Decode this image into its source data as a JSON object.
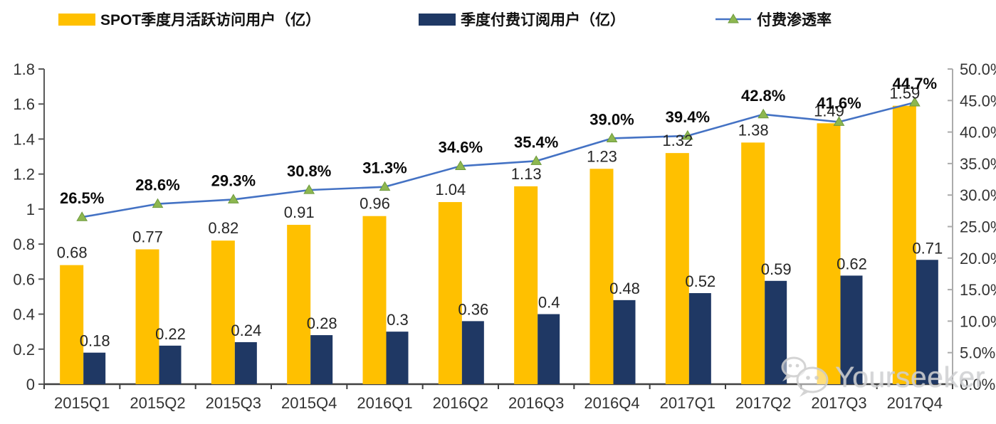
{
  "chart_data": {
    "type": "bar",
    "title": "",
    "categories": [
      "2015Q1",
      "2015Q2",
      "2015Q3",
      "2015Q4",
      "2016Q1",
      "2016Q2",
      "2016Q3",
      "2016Q4",
      "2017Q1",
      "2017Q2",
      "2017Q3",
      "2017Q4"
    ],
    "series": [
      {
        "name": "SPOT季度月活跃访问用户（亿）",
        "kind": "bar",
        "axis": "left",
        "color": "#FFC000",
        "values": [
          0.68,
          0.77,
          0.82,
          0.91,
          0.96,
          1.04,
          1.13,
          1.23,
          1.32,
          1.38,
          1.49,
          1.59
        ],
        "labels": [
          "0.68",
          "0.77",
          "0.82",
          "0.91",
          "0.96",
          "1.04",
          "1.13",
          "1.23",
          "1.32",
          "1.38",
          "1.49",
          "1.59"
        ]
      },
      {
        "name": "季度付费订阅用户（亿）",
        "kind": "bar",
        "axis": "left",
        "color": "#1F3864",
        "values": [
          0.18,
          0.22,
          0.24,
          0.28,
          0.3,
          0.36,
          0.4,
          0.48,
          0.52,
          0.59,
          0.62,
          0.71
        ],
        "labels": [
          "0.18",
          "0.22",
          "0.24",
          "0.28",
          "0.3",
          "0.36",
          "0.4",
          "0.48",
          "0.52",
          "0.59",
          "0.62",
          "0.71"
        ]
      },
      {
        "name": "付费渗透率",
        "kind": "line",
        "axis": "right",
        "color": "#4472C4",
        "marker": "triangle-up",
        "marker_color": "#8DB750",
        "marker_stroke": "#6E9A3D",
        "values": [
          26.5,
          28.6,
          29.3,
          30.8,
          31.3,
          34.6,
          35.4,
          39.0,
          39.4,
          42.8,
          41.6,
          44.7
        ],
        "labels": [
          "26.5%",
          "28.6%",
          "29.3%",
          "30.8%",
          "31.3%",
          "34.6%",
          "35.4%",
          "39.0%",
          "39.4%",
          "42.8%",
          "41.6%",
          "44.7%"
        ]
      }
    ],
    "left_axis": {
      "min": 0,
      "max": 1.8,
      "tick_labels": [
        "0",
        "0.2",
        "0.4",
        "0.6",
        "0.8",
        "1",
        "1.2",
        "1.4",
        "1.6",
        "1.8"
      ]
    },
    "right_axis": {
      "min": 0,
      "max": 50,
      "tick_labels": [
        "0.0%",
        "5.0%",
        "10.0%",
        "15.0%",
        "20.0%",
        "25.0%",
        "30.0%",
        "35.0%",
        "40.0%",
        "45.0%",
        "50.0%"
      ]
    },
    "grid": false,
    "legend_position": "top"
  },
  "watermark": {
    "text": "Yourseeker"
  }
}
